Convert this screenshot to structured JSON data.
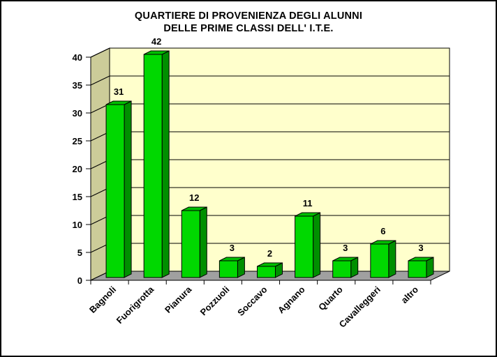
{
  "title": {
    "line1": "QUARTIERE DI PROVENIENZA DEGLI ALUNNI",
    "line2": "DELLE PRIME CLASSI DELL' I.T.E."
  },
  "chart_data": {
    "type": "bar",
    "variant": "3d-column",
    "title": "QUARTIERE DI PROVENIENZA DEGLI ALUNNI DELLE PRIME CLASSI DELL' I.T.E.",
    "title_lines": [
      "QUARTIERE DI PROVENIENZA DEGLI ALUNNI",
      "DELLE PRIME CLASSI DELL' I.T.E."
    ],
    "categories": [
      "Bagnoli",
      "Fuorigrotta",
      "Pianura",
      "Pozzuoli",
      "Soccavo",
      "Agnano",
      "Quarto",
      "Cavalleggeri",
      "altro"
    ],
    "values": [
      31,
      42,
      12,
      3,
      2,
      11,
      3,
      6,
      3
    ],
    "data_labels_shown": true,
    "xlabel": "",
    "ylabel": "",
    "y_ticks": [
      0,
      5,
      10,
      15,
      20,
      25,
      30,
      35,
      40
    ],
    "ylim": [
      0,
      40
    ],
    "grid": true,
    "legend": "none",
    "category_label_rotation_deg": -45,
    "colors": {
      "background": "#FFFFFF",
      "frame_border": "#000000",
      "wall_back": "#FFFFCC",
      "wall_side": "#CCCC99",
      "floor": "#A0A0A0",
      "bar_front": "#00D800",
      "bar_top": "#00BE00",
      "bar_side": "#008F00",
      "outline": "#000000",
      "gridline": "#000000",
      "text": "#000000"
    }
  }
}
